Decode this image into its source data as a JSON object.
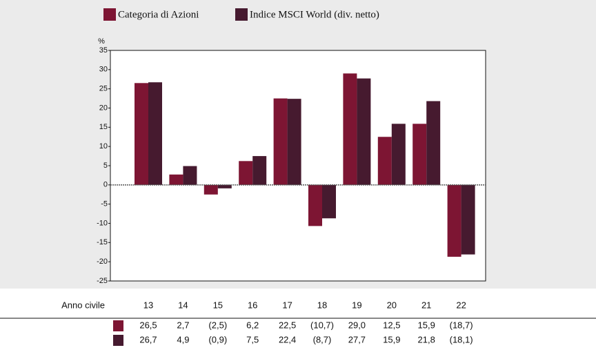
{
  "chart_data": {
    "type": "bar",
    "y_label": "%",
    "table_header": "Anno civile",
    "categories": [
      "13",
      "14",
      "15",
      "16",
      "17",
      "18",
      "19",
      "20",
      "21",
      "22"
    ],
    "series": [
      {
        "name": "Categoria di Azioni",
        "color": "#7d1533",
        "values": [
          26.5,
          2.7,
          -2.5,
          6.2,
          22.5,
          -10.7,
          29.0,
          12.5,
          15.9,
          -18.7
        ],
        "value_labels": [
          "26,5",
          "2,7",
          "(2,5)",
          "6,2",
          "22,5",
          "(10,7)",
          "29,0",
          "12,5",
          "15,9",
          "(18,7)"
        ]
      },
      {
        "name": "Indice MSCI World (div. netto)",
        "color": "#461a2f",
        "values": [
          26.7,
          4.9,
          -0.9,
          7.5,
          22.4,
          -8.7,
          27.7,
          15.9,
          21.8,
          -18.1
        ],
        "value_labels": [
          "26,7",
          "4,9",
          "(0,9)",
          "7,5",
          "22,4",
          "(8,7)",
          "27,7",
          "15,9",
          "21,8",
          "(18,1)"
        ]
      }
    ],
    "ylim": [
      -25,
      35
    ],
    "yticks": [
      -25,
      -20,
      -15,
      -10,
      -5,
      0,
      5,
      10,
      15,
      20,
      25,
      30,
      35
    ],
    "zero_line": true
  }
}
